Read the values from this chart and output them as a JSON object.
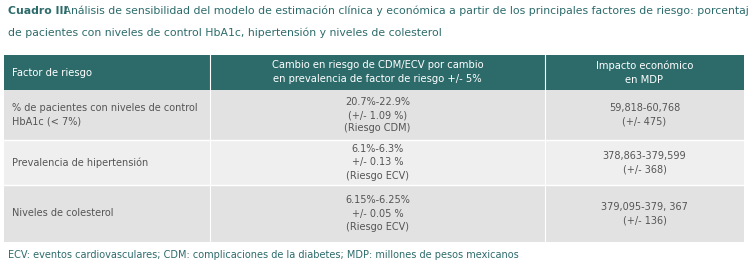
{
  "title_bold": "Cuadro III",
  "title_rest": " Análisis de sensibilidad del modelo de estimación clínica y económica a partir de los principales factores de riesgo: porcentaje",
  "title_line2": "de pacientes con niveles de control HbA1c, hipertensión y niveles de colesterol",
  "header_col1": "Factor de riesgo",
  "header_col2": "Cambio en riesgo de CDM/ECV por cambio\nen prevalencia de factor de riesgo +/- 5%",
  "header_col3": "Impacto económico\nen MDP",
  "rows": [
    {
      "col1": "% de pacientes con niveles de control\nHbA1c (< 7%)",
      "col2": "20.7%-22.9%\n(+/- 1.09 %)\n(Riesgo CDM)",
      "col3": "59,818-60,768\n(+/- 475)"
    },
    {
      "col1": "Prevalencia de hipertensión",
      "col2": "6.1%-6.3%\n+/- 0.13 %\n(Riesgo ECV)",
      "col3": "378,863-379,599\n(+/- 368)"
    },
    {
      "col1": "Niveles de colesterol",
      "col2": "6.15%-6.25%\n+/- 0.05 %\n(Riesgo ECV)",
      "col3": "379,095-379, 367\n(+/- 136)"
    }
  ],
  "footer": "ECV: eventos cardiovasculares; CDM: complicaciones de la diabetes; MDP: millones de pesos mexicanos",
  "header_bg": "#2d6b6b",
  "header_text_color": "#ffffff",
  "row_bg_odd": "#e2e2e2",
  "row_bg_even": "#efefef",
  "row_text_color": "#555555",
  "title_color": "#2d6b6b",
  "footer_color": "#2d6b6b",
  "bg_color": "#ffffff",
  "figsize": [
    7.48,
    2.67
  ],
  "dpi": 100
}
